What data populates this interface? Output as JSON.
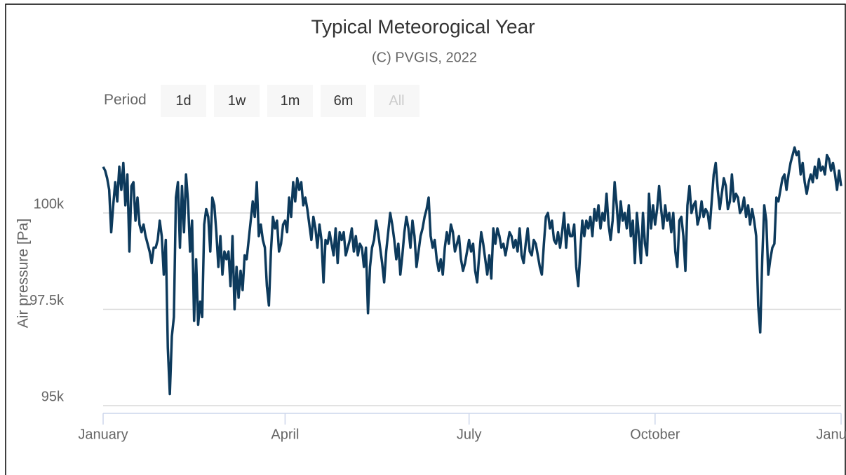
{
  "chart_data": {
    "type": "line",
    "title": "Typical Meteorogical Year",
    "subtitle": "(C) PVGIS, 2022",
    "y_label": "Air pressure [Pa]",
    "color": "#0d3a5c",
    "range_selector": {
      "label": "Period",
      "buttons": [
        "1d",
        "1w",
        "1m",
        "6m",
        "All"
      ],
      "disabled": [
        "All"
      ]
    },
    "xlim": [
      0,
      365
    ],
    "xticks": [
      {
        "value": 0,
        "label": "January"
      },
      {
        "value": 90,
        "label": "April"
      },
      {
        "value": 181,
        "label": "July"
      },
      {
        "value": 273,
        "label": "October"
      },
      {
        "value": 365,
        "label": "January"
      }
    ],
    "ylim": [
      94800,
      102200
    ],
    "yticks": [
      {
        "value": 95000,
        "label": "95k"
      },
      {
        "value": 97500,
        "label": "97.5k"
      },
      {
        "value": 100000,
        "label": "100k"
      }
    ],
    "grid": true,
    "x": [
      0,
      1,
      2,
      3,
      4,
      5,
      6,
      7,
      8,
      9,
      10,
      11,
      12,
      13,
      14,
      15,
      16,
      17,
      18,
      19,
      20,
      21,
      22,
      23,
      24,
      25,
      26,
      27,
      28,
      29,
      30,
      31,
      32,
      33,
      34,
      35,
      36,
      37,
      38,
      39,
      40,
      41,
      42,
      43,
      44,
      45,
      46,
      47,
      48,
      49,
      50,
      51,
      52,
      53,
      54,
      55,
      56,
      57,
      58,
      59,
      60,
      61,
      62,
      63,
      64,
      65,
      66,
      67,
      68,
      69,
      70,
      71,
      72,
      73,
      74,
      75,
      76,
      77,
      78,
      79,
      80,
      81,
      82,
      83,
      84,
      85,
      86,
      87,
      88,
      89,
      90,
      91,
      92,
      93,
      94,
      95,
      96,
      97,
      98,
      99,
      100,
      101,
      102,
      103,
      104,
      105,
      106,
      107,
      108,
      109,
      110,
      111,
      112,
      113,
      114,
      115,
      116,
      117,
      118,
      119,
      120,
      121,
      122,
      123,
      124,
      125,
      126,
      127,
      128,
      129,
      130,
      131,
      132,
      133,
      134,
      135,
      136,
      137,
      138,
      139,
      140,
      141,
      142,
      143,
      144,
      145,
      146,
      147,
      148,
      149,
      150,
      151,
      152,
      153,
      154,
      155,
      156,
      157,
      158,
      159,
      160,
      161,
      162,
      163,
      164,
      165,
      166,
      167,
      168,
      169,
      170,
      171,
      172,
      173,
      174,
      175,
      176,
      177,
      178,
      179,
      180,
      181,
      182,
      183,
      184,
      185,
      186,
      187,
      188,
      189,
      190,
      191,
      192,
      193,
      194,
      195,
      196,
      197,
      198,
      199,
      200,
      201,
      202,
      203,
      204,
      205,
      206,
      207,
      208,
      209,
      210,
      211,
      212,
      213,
      214,
      215,
      216,
      217,
      218,
      219,
      220,
      221,
      222,
      223,
      224,
      225,
      226,
      227,
      228,
      229,
      230,
      231,
      232,
      233,
      234,
      235,
      236,
      237,
      238,
      239,
      240,
      241,
      242,
      243,
      244,
      245,
      246,
      247,
      248,
      249,
      250,
      251,
      252,
      253,
      254,
      255,
      256,
      257,
      258,
      259,
      260,
      261,
      262,
      263,
      264,
      265,
      266,
      267,
      268,
      269,
      270,
      271,
      272,
      273,
      274,
      275,
      276,
      277,
      278,
      279,
      280,
      281,
      282,
      283,
      284,
      285,
      286,
      287,
      288,
      289,
      290,
      291,
      292,
      293,
      294,
      295,
      296,
      297,
      298,
      299,
      300,
      301,
      302,
      303,
      304,
      305,
      306,
      307,
      308,
      309,
      310,
      311,
      312,
      313,
      314,
      315,
      316,
      317,
      318,
      319,
      320,
      321,
      322,
      323,
      324,
      325,
      326,
      327,
      328,
      329,
      330,
      331,
      332,
      333,
      334,
      335,
      336,
      337,
      338,
      339,
      340,
      341,
      342,
      343,
      344,
      345,
      346,
      347,
      348,
      349,
      350,
      351,
      352,
      353,
      354,
      355,
      356,
      357,
      358,
      359,
      360,
      361,
      362,
      363,
      364,
      365
    ],
    "values": [
      101200,
      101100,
      100900,
      100600,
      99500,
      100200,
      100800,
      100300,
      101200,
      100600,
      101300,
      100200,
      101000,
      99000,
      100700,
      100800,
      99800,
      100400,
      99700,
      99500,
      99700,
      99400,
      99200,
      99000,
      98700,
      99100,
      99100,
      99300,
      99800,
      99400,
      98400,
      99300,
      96500,
      95300,
      96800,
      97300,
      100400,
      100800,
      99100,
      100700,
      99500,
      101000,
      100300,
      99000,
      99800,
      97200,
      98800,
      97100,
      97700,
      97300,
      99700,
      100100,
      99900,
      99000,
      100400,
      100200,
      99500,
      98600,
      99400,
      98400,
      99000,
      98800,
      99000,
      98100,
      99400,
      97500,
      98600,
      97800,
      98500,
      98000,
      98900,
      98800,
      99300,
      99800,
      100300,
      99900,
      100800,
      99400,
      99700,
      99300,
      99100,
      98100,
      97600,
      99000,
      99900,
      99600,
      99800,
      99000,
      99200,
      99700,
      99800,
      99500,
      100400,
      99900,
      100800,
      100300,
      100900,
      100600,
      100800,
      100200,
      100400,
      100100,
      99700,
      99300,
      99900,
      99600,
      99100,
      99700,
      99300,
      98200,
      99300,
      99200,
      99500,
      99200,
      98900,
      99600,
      98700,
      99500,
      99300,
      99500,
      98900,
      99100,
      99300,
      99600,
      99000,
      99400,
      98900,
      99200,
      99100,
      98600,
      99100,
      97400,
      98600,
      99100,
      99300,
      99800,
      99500,
      99100,
      98700,
      98200,
      99000,
      99500,
      100000,
      99700,
      99300,
      98800,
      99200,
      98400,
      98900,
      99500,
      99900,
      99600,
      99100,
      99800,
      99400,
      98600,
      99000,
      99400,
      99600,
      99900,
      100100,
      100400,
      99400,
      99100,
      99300,
      98800,
      98500,
      98800,
      98400,
      99100,
      99500,
      99200,
      99700,
      99500,
      99000,
      99200,
      99400,
      98800,
      98500,
      98700,
      99000,
      99300,
      99000,
      99200,
      98500,
      98200,
      98900,
      99500,
      99200,
      98800,
      98400,
      98900,
      98300,
      99600,
      99200,
      99600,
      99400,
      99100,
      99200,
      98900,
      99200,
      99500,
      99400,
      99100,
      99300,
      99000,
      99600,
      98900,
      98700,
      99200,
      99600,
      99000,
      98900,
      99300,
      99200,
      98900,
      98600,
      98400,
      99200,
      99900,
      100000,
      99600,
      99800,
      99300,
      99200,
      99500,
      99100,
      99500,
      100000,
      99100,
      99700,
      99400,
      99400,
      99700,
      98600,
      98100,
      99000,
      99800,
      99400,
      99800,
      99600,
      99900,
      99400,
      100100,
      99800,
      100200,
      99600,
      100000,
      99800,
      100500,
      99700,
      99300,
      99800,
      100800,
      100200,
      99500,
      100300,
      99800,
      100000,
      99600,
      100200,
      99400,
      99800,
      98700,
      100000,
      99400,
      98700,
      100000,
      99200,
      98900,
      100500,
      99600,
      100200,
      99700,
      100100,
      100700,
      100100,
      99600,
      100200,
      99800,
      100000,
      99500,
      100000,
      99000,
      98600,
      99800,
      99900,
      99400,
      98500,
      100200,
      100700,
      100000,
      100200,
      100300,
      99700,
      99900,
      100300,
      99900,
      100100,
      100000,
      99600,
      100300,
      101000,
      101300,
      100600,
      100100,
      100500,
      100900,
      100700,
      100100,
      100300,
      101000,
      100300,
      100500,
      100400,
      100000,
      100100,
      100400,
      99900,
      100200,
      99700,
      100100,
      99800,
      99400,
      97600,
      96900,
      98800,
      100200,
      99800,
      98400,
      98800,
      99100,
      99200,
      100400,
      100300,
      100600,
      100900,
      101000,
      100600,
      101000,
      101300,
      101500,
      101700,
      101500,
      101600,
      101000,
      101300,
      100800,
      100500,
      100800,
      101000,
      100800,
      101200,
      100900,
      101400,
      101100,
      101200,
      101000,
      101500,
      101400,
      101100,
      101300,
      101000,
      100600,
      101100,
      100700
    ]
  }
}
